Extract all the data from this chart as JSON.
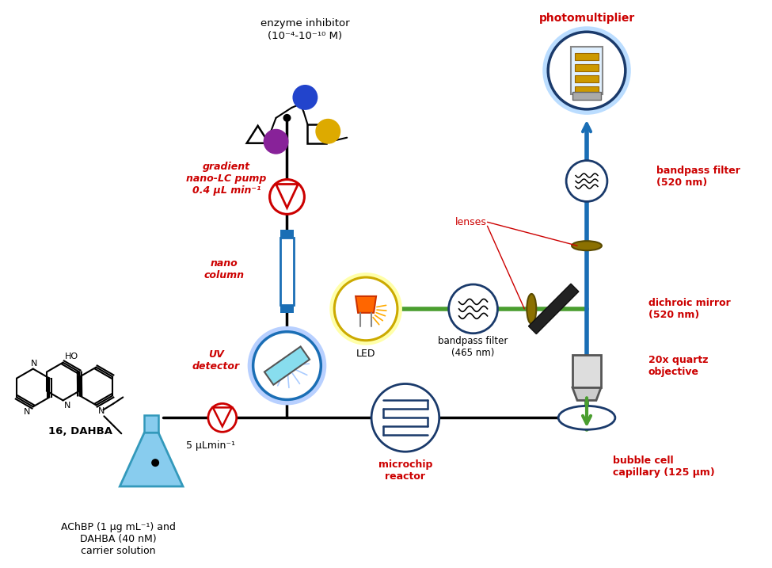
{
  "bg_color": "#ffffff",
  "red_color": "#cc0000",
  "blue_color": "#1a6eb5",
  "green_color": "#4a9e2f",
  "dark_blue": "#1a3a6b",
  "labels": {
    "enzyme_inhibitor_line1": "enzyme inhibitor",
    "enzyme_inhibitor_line2": "(10⁻⁴-10⁻¹⁰ M)",
    "gradient_pump": "gradient\nnano-LC pump\n0.4 μL min⁻¹",
    "nano_column": "nano\ncolumn",
    "uv_detector": "UV\ndetector",
    "pump_label": "5 μLmin⁻¹",
    "microchip": "microchip\nreactor",
    "bubble_cell": "bubble cell\ncapillary (125 μm)",
    "led": "LED",
    "bandpass465": "bandpass filter\n(465 nm)",
    "bandpass520": "bandpass filter\n(520 nm)",
    "dichroic": "dichroic mirror\n(520 nm)",
    "lenses": "lenses",
    "photomultiplier": "photomultiplier",
    "quartz_obj": "20x quartz\nobjective",
    "achbp": "AChBP (1 μg mL⁻¹) and\nDAHBA (40 nM)\ncarrier solution",
    "dahba": "16, DAHBA"
  }
}
